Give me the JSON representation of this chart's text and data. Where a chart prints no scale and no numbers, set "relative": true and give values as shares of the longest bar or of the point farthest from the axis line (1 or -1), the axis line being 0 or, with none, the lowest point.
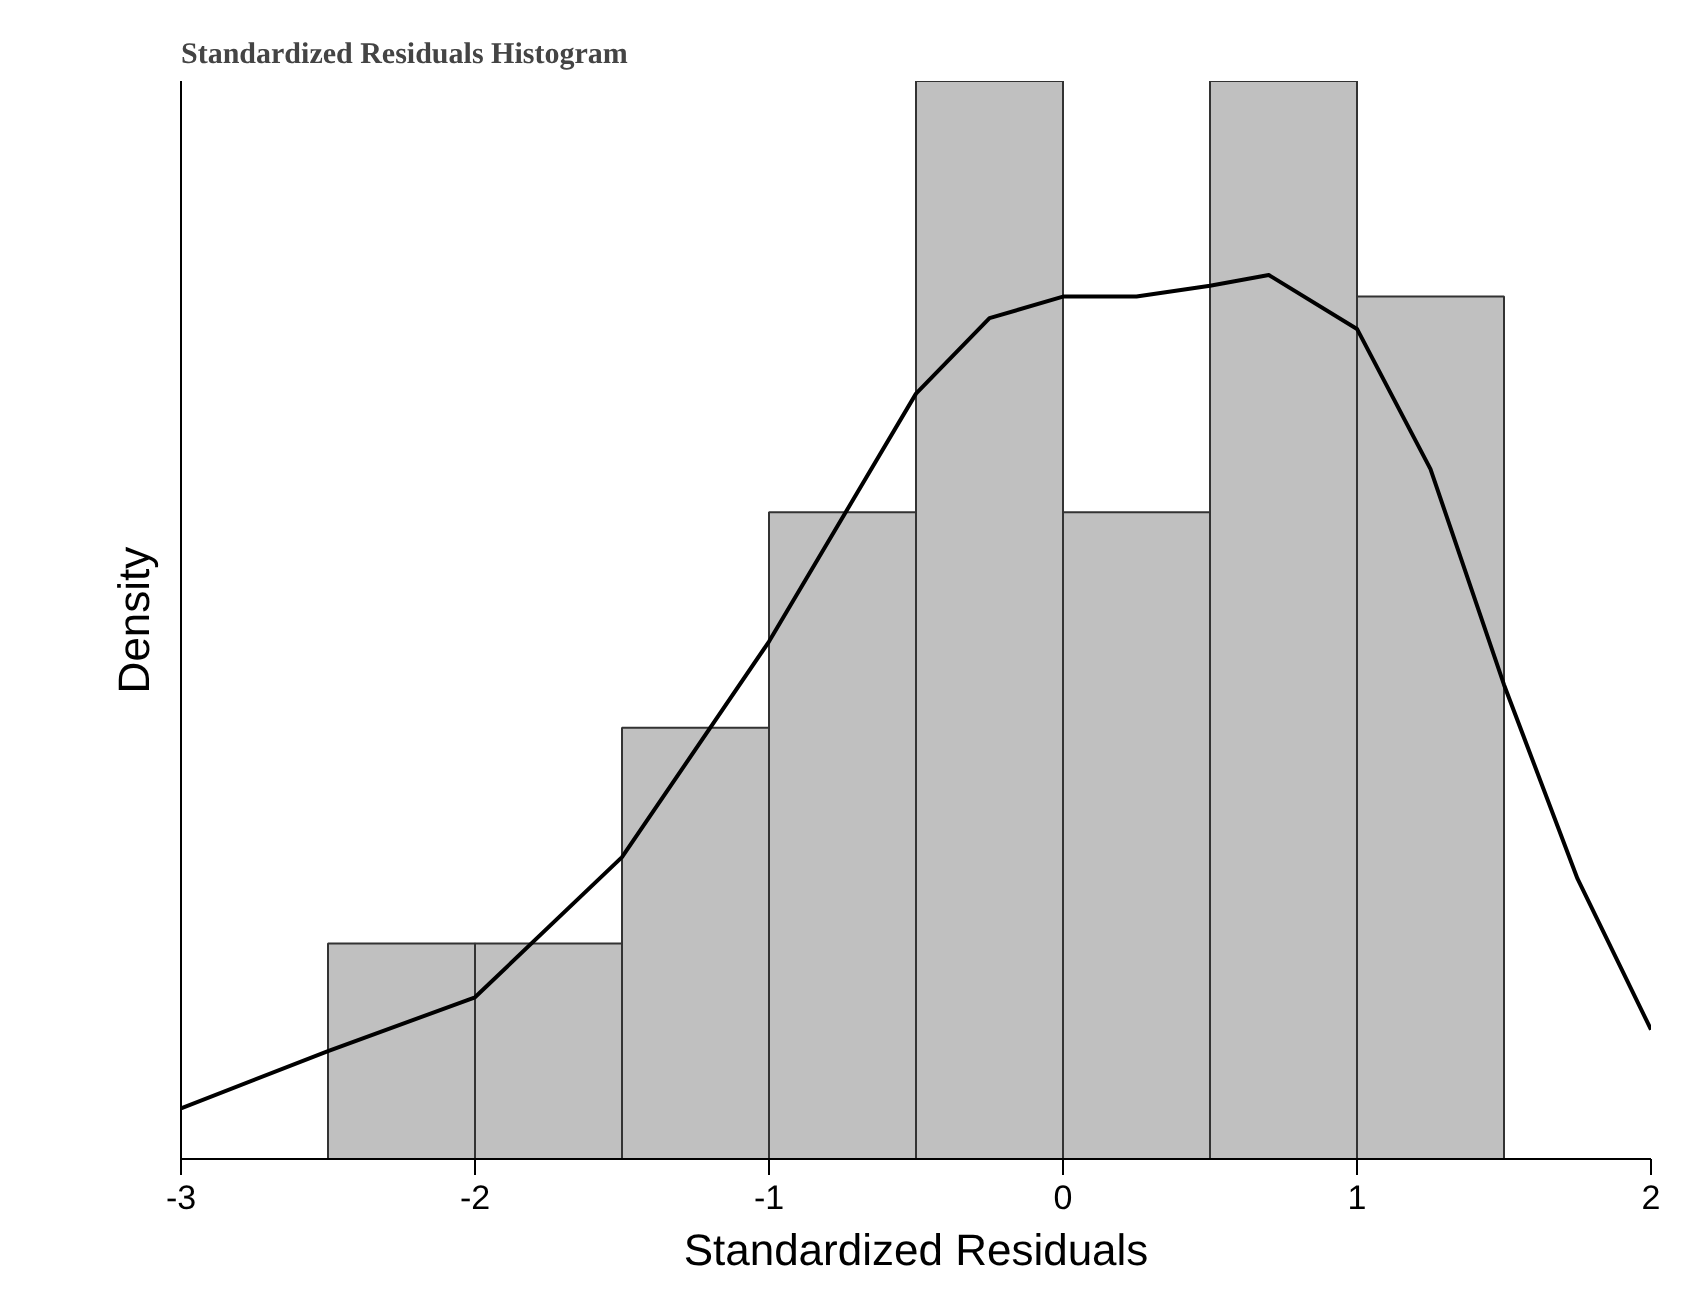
{
  "chart_data": {
    "type": "histogram",
    "title": "Standardized Residuals Histogram",
    "xlabel": "Standardized Residuals",
    "ylabel": "Density",
    "relative": true,
    "bins": [
      -2.5,
      -2,
      -1.5,
      -1,
      -0.5,
      0,
      0.5,
      1,
      1.5
    ],
    "values": [
      0.2,
      0.2,
      0.4,
      0.6,
      1,
      0.6,
      1,
      0.8
    ],
    "color": "#c0c0c0",
    "series": [
      {
        "type": "line",
        "color": "#000000",
        "x": [
          -3,
          -2.5,
          -2,
          -1.5,
          -1,
          -0.5,
          -0.25,
          0,
          0.25,
          0.5,
          0.7,
          1,
          1.25,
          1.5,
          1.75,
          2
        ],
        "values": [
          0.047,
          0.1,
          0.15,
          0.28,
          0.48,
          0.71,
          0.78,
          0.8,
          0.8,
          0.81,
          0.82,
          0.77,
          0.64,
          0.44,
          0.26,
          0.12
        ]
      }
    ],
    "xlim": [
      -3,
      2
    ],
    "xticks": [
      -3,
      -2,
      -1,
      0,
      1,
      2
    ],
    "grid": false
  }
}
